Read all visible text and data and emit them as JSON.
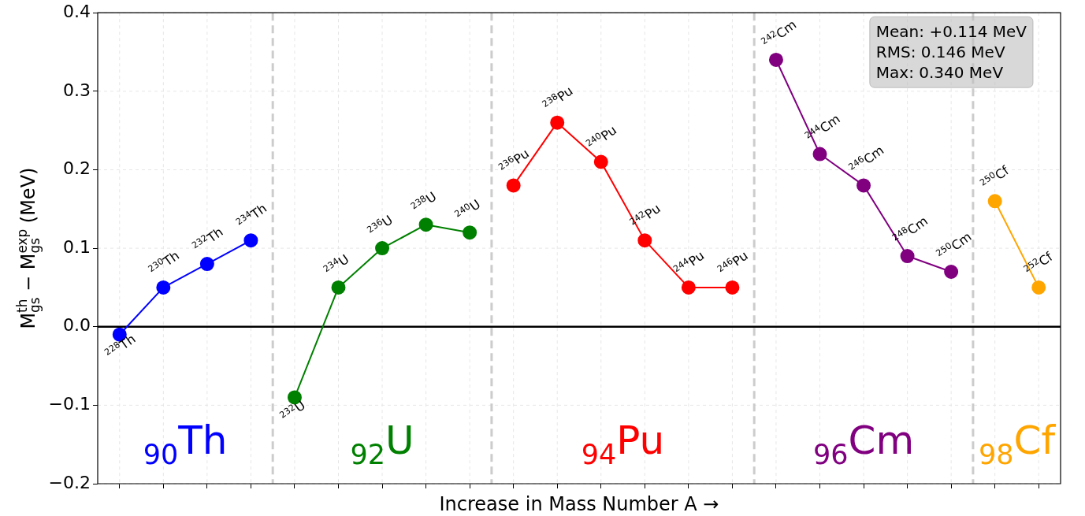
{
  "chart_data": {
    "type": "line",
    "xlabel": "Increase in Mass Number A →",
    "ylabel": "M$_{gs}$$^{th}$ − M$_{gs}$$^{exp}$ (MeV)",
    "categories": [
      null,
      null,
      null,
      null,
      null,
      null,
      null,
      null,
      null,
      null,
      null,
      null,
      null,
      null,
      null,
      null,
      null,
      null,
      null,
      null,
      null,
      null
    ],
    "ylim": [
      -0.2,
      0.4
    ],
    "yticks": [
      {
        "value": -0.2,
        "label": "−0.2"
      },
      {
        "value": -0.1,
        "label": "−0.1"
      },
      {
        "value": 0,
        "label": "0.0"
      },
      {
        "value": 0.1,
        "label": "0.1"
      },
      {
        "value": 0.2,
        "label": "0.2"
      },
      {
        "value": 0.3,
        "label": "0.3"
      },
      {
        "value": 0.4,
        "label": "0.4"
      }
    ],
    "grid": true,
    "marker": "circle",
    "series": [
      {
        "name": "$_{90}$Th",
        "color": "#0000ff",
        "values": [
          -0.01,
          0.05,
          0.08,
          0.11,
          null,
          null,
          null,
          null,
          null,
          null,
          null,
          null,
          null,
          null,
          null,
          null,
          null,
          null,
          null,
          null,
          null,
          null
        ]
      },
      {
        "name": "$_{92}$U",
        "color": "#008000",
        "values": [
          null,
          null,
          null,
          null,
          -0.09,
          0.05,
          0.1,
          0.13,
          0.12,
          null,
          null,
          null,
          null,
          null,
          null,
          null,
          null,
          null,
          null,
          null,
          null,
          null
        ]
      },
      {
        "name": "$_{94}$Pu",
        "color": "#ff0000",
        "values": [
          null,
          null,
          null,
          null,
          null,
          null,
          null,
          null,
          null,
          0.18,
          0.26,
          0.21,
          0.11,
          0.05,
          0.05,
          null,
          null,
          null,
          null,
          null,
          null,
          null
        ]
      },
      {
        "name": "$_{96}$Cm",
        "color": "#800080",
        "values": [
          null,
          null,
          null,
          null,
          null,
          null,
          null,
          null,
          null,
          null,
          null,
          null,
          null,
          null,
          null,
          0.34,
          0.22,
          0.18,
          0.09,
          0.07,
          null,
          null
        ]
      },
      {
        "name": "$_{98}$Cf",
        "color": "#ffa500",
        "values": [
          null,
          null,
          null,
          null,
          null,
          null,
          null,
          null,
          null,
          null,
          null,
          null,
          null,
          null,
          null,
          null,
          null,
          null,
          null,
          null,
          0.16,
          0.05
        ]
      }
    ],
    "ref_lines": [
      {
        "axis": "y",
        "value": 0,
        "color": "#000000",
        "line_style": "solid"
      }
    ],
    "annotations": [
      "Mean: +0.114 MeV",
      "RMS: 0.146 MeV",
      "Max: 0.340 MeV",
      {
        "text": "$^{228}$Th",
        "y": -0.01
      },
      {
        "text": "$^{230}$Th",
        "y": 0.05
      },
      {
        "text": "$^{232}$Th",
        "y": 0.08
      },
      {
        "text": "$^{234}$Th",
        "y": 0.11
      },
      {
        "text": "$^{232}$U",
        "y": -0.09
      },
      {
        "text": "$^{234}$U",
        "y": 0.05
      },
      {
        "text": "$^{236}$U",
        "y": 0.1
      },
      {
        "text": "$^{238}$U",
        "y": 0.13
      },
      {
        "text": "$^{240}$U",
        "y": 0.12
      },
      {
        "text": "$^{236}$Pu",
        "y": 0.18
      },
      {
        "text": "$^{238}$Pu",
        "y": 0.26
      },
      {
        "text": "$^{240}$Pu",
        "y": 0.21
      },
      {
        "text": "$^{242}$Pu",
        "y": 0.11
      },
      {
        "text": "$^{244}$Pu",
        "y": 0.05
      },
      {
        "text": "$^{246}$Pu",
        "y": 0.05
      },
      {
        "text": "$^{242}$Cm",
        "y": 0.34
      },
      {
        "text": "$^{244}$Cm",
        "y": 0.22
      },
      {
        "text": "$^{246}$Cm",
        "y": 0.18
      },
      {
        "text": "$^{248}$Cm",
        "y": 0.09
      },
      {
        "text": "$^{250}$Cm",
        "y": 0.07
      },
      {
        "text": "$^{250}$Cf",
        "y": 0.16
      },
      {
        "text": "$^{252}$Cf",
        "y": 0.05
      }
    ]
  }
}
